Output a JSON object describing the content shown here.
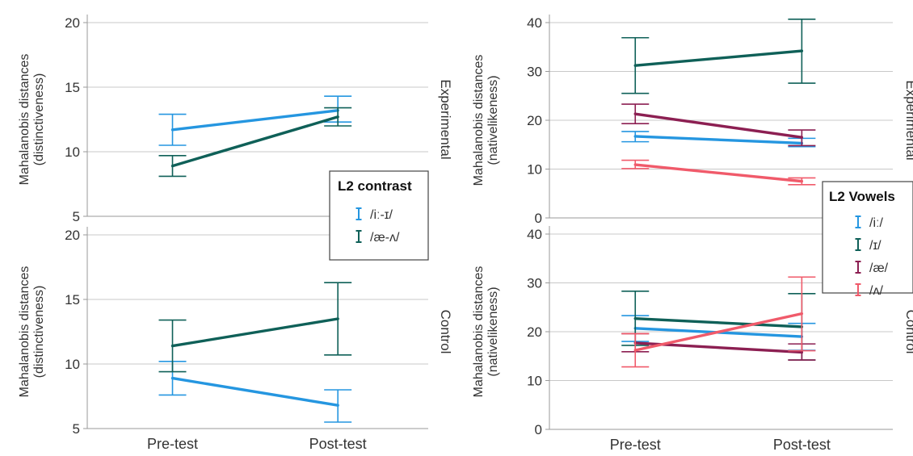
{
  "chart_data": [
    {
      "type": "line",
      "id": "left-experimental",
      "ylabel": "Mahalanobis distances (distinctiveness)",
      "facet": "Experimental",
      "categories": [
        "Pre-test",
        "Post-test"
      ],
      "ylim": [
        5,
        20
      ],
      "yticks": [
        "5",
        "10",
        "15",
        "20"
      ],
      "legend": {
        "title": "L2 contrast",
        "placement": "right"
      },
      "series": [
        {
          "name": "/iː-ɪ/",
          "color": "#2596e0",
          "values": [
            11.7,
            13.2
          ],
          "err_low": [
            10.5,
            12.3
          ],
          "err_high": [
            12.9,
            14.3
          ]
        },
        {
          "name": "/æ-ʌ/",
          "color": "#0f6058",
          "values": [
            8.9,
            12.7
          ],
          "err_low": [
            8.1,
            12.0
          ],
          "err_high": [
            9.7,
            13.4
          ]
        }
      ]
    },
    {
      "type": "line",
      "id": "left-control",
      "ylabel": "Mahalanobis distances (distinctiveness)",
      "facet": "Control",
      "categories": [
        "Pre-test",
        "Post-test"
      ],
      "ylim": [
        5,
        20
      ],
      "yticks": [
        "5",
        "10",
        "15",
        "20"
      ],
      "series": [
        {
          "name": "/iː-ɪ/",
          "color": "#2596e0",
          "values": [
            8.9,
            6.8
          ],
          "err_low": [
            7.6,
            5.5
          ],
          "err_high": [
            10.2,
            8.0
          ]
        },
        {
          "name": "/æ-ʌ/",
          "color": "#0f6058",
          "values": [
            11.4,
            13.5
          ],
          "err_low": [
            9.4,
            10.7
          ],
          "err_high": [
            13.4,
            16.3
          ]
        }
      ]
    },
    {
      "type": "line",
      "id": "right-experimental",
      "ylabel": "Mahalanobis distances (nativelikeness)",
      "facet": "Experimental",
      "categories": [
        "Pre-test",
        "Post-test"
      ],
      "ylim": [
        0,
        40
      ],
      "yticks": [
        "0",
        "10",
        "20",
        "30",
        "40"
      ],
      "legend": {
        "title": "L2 Vowels",
        "placement": "right"
      },
      "series": [
        {
          "name": "/iː/",
          "color": "#2596e0",
          "values": [
            16.7,
            15.3
          ],
          "err_low": [
            15.6,
            14.6
          ],
          "err_high": [
            17.7,
            16.3
          ]
        },
        {
          "name": "/ɪ/",
          "color": "#0f6058",
          "values": [
            31.2,
            34.2
          ],
          "err_low": [
            25.5,
            27.6
          ],
          "err_high": [
            36.9,
            40.7
          ]
        },
        {
          "name": "/æ/",
          "color": "#8c1f52",
          "values": [
            21.3,
            16.5
          ],
          "err_low": [
            19.3,
            14.8
          ],
          "err_high": [
            23.3,
            18.0
          ]
        },
        {
          "name": "/ʌ/",
          "color": "#f05a6a",
          "values": [
            10.9,
            7.5
          ],
          "err_low": [
            10.1,
            6.8
          ],
          "err_high": [
            11.8,
            8.2
          ]
        }
      ]
    },
    {
      "type": "line",
      "id": "right-control",
      "ylabel": "Mahalanobis distances (nativelikeness)",
      "facet": "Control",
      "categories": [
        "Pre-test",
        "Post-test"
      ],
      "ylim": [
        0,
        40
      ],
      "yticks": [
        "0",
        "10",
        "20",
        "30",
        "40"
      ],
      "series": [
        {
          "name": "/iː/",
          "color": "#2596e0",
          "values": [
            20.7,
            19.0
          ],
          "err_low": [
            18.0,
            16.2
          ],
          "err_high": [
            23.3,
            21.7
          ]
        },
        {
          "name": "/ɪ/",
          "color": "#0f6058",
          "values": [
            22.7,
            21.0
          ],
          "err_low": [
            17.2,
            14.2
          ],
          "err_high": [
            28.3,
            27.8
          ]
        },
        {
          "name": "/æ/",
          "color": "#8c1f52",
          "values": [
            17.7,
            15.8
          ],
          "err_low": [
            15.9,
            14.2
          ],
          "err_high": [
            19.6,
            17.5
          ]
        },
        {
          "name": "/ʌ/",
          "color": "#f05a6a",
          "values": [
            16.2,
            23.7
          ],
          "err_low": [
            12.8,
            16.1
          ],
          "err_high": [
            19.6,
            31.2
          ]
        }
      ]
    }
  ],
  "colors": {
    "gridline": "#c8c8c8",
    "frame": "#9a9a9a",
    "text": "#333333",
    "legend_border": "#444444"
  }
}
